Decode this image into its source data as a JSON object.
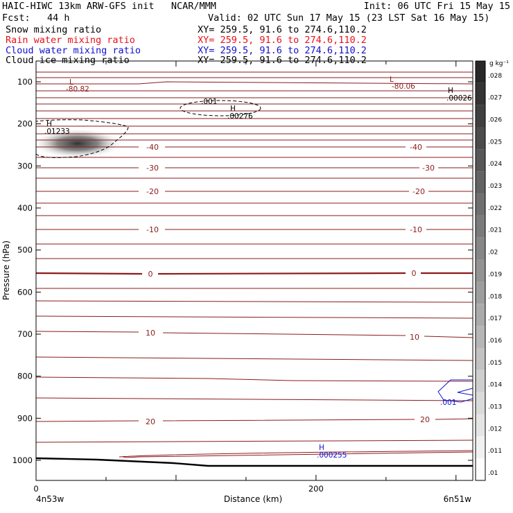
{
  "header": {
    "title": "HAIC-HIWC 13km ARW-GFS init   NCAR/MMM",
    "init": "Init: 06 UTC Fri 15 May 15",
    "fcst": "Fcst:   44 h",
    "valid": "Valid: 02 UTC Sun 17 May 15 (23 LST Sat 16 May 15)",
    "fields": [
      {
        "name": "Snow mixing ratio",
        "xy": "XY= 259.5, 91.6 to 274.6,110.2",
        "color": "#000000"
      },
      {
        "name": "Rain water mixing ratio",
        "xy": "XY= 259.5, 91.6 to 274.6,110.2",
        "color": "#e8101c"
      },
      {
        "name": "Cloud water mixing ratio",
        "xy": "XY= 259.5, 91.6 to 274.6,110.2",
        "color": "#1010d0"
      },
      {
        "name": "Cloud ice mixing ratio",
        "xy": "XY= 259.5, 91.6 to 274.6,110.2",
        "color": "#000000"
      }
    ]
  },
  "colorbar": {
    "unit": "g kg⁻¹",
    "labels": [
      ".028",
      ".027",
      ".026",
      ".025",
      ".024",
      ".023",
      ".022",
      ".021",
      ".02",
      ".019",
      ".018",
      ".017",
      ".016",
      ".015",
      ".014",
      ".013",
      ".012",
      ".011",
      ".01"
    ]
  },
  "annotations": {
    "low1": "L",
    "low1_val": "-80.82",
    "low2": "L",
    "low2_val": "-80.06",
    "high1": "H",
    "high1_val": ".00026",
    "high2": "H",
    "high2_val": ".00276",
    "high3": "H",
    "high3_val": ".01233",
    "high4": "H",
    "high4_val": ".000255",
    "ice_contour": ".001",
    "cloud_contour": ".001"
  },
  "chart_data": {
    "type": "heatmap",
    "title": "HAIC-HIWC 13km ARW-GFS init",
    "xlabel": "Distance (km)",
    "ylabel": "Pressure (hPa)",
    "xlim": [
      0,
      300
    ],
    "ylim": [
      1050,
      50
    ],
    "x_ticks": [
      0,
      200
    ],
    "y_ticks": [
      100,
      200,
      300,
      400,
      500,
      600,
      700,
      800,
      900,
      1000
    ],
    "x_endpoint_labels": [
      "4n53w",
      "6n51w"
    ],
    "temperature_contours": [
      {
        "value": "-40",
        "pressure": 250
      },
      {
        "value": "-30",
        "pressure": 300
      },
      {
        "value": "-20",
        "pressure": 350
      },
      {
        "value": "-10",
        "pressure": 420
      },
      {
        "value": "0",
        "pressure": 545
      },
      {
        "value": "10",
        "pressure": 685
      },
      {
        "value": "20",
        "pressure": 905
      }
    ]
  }
}
